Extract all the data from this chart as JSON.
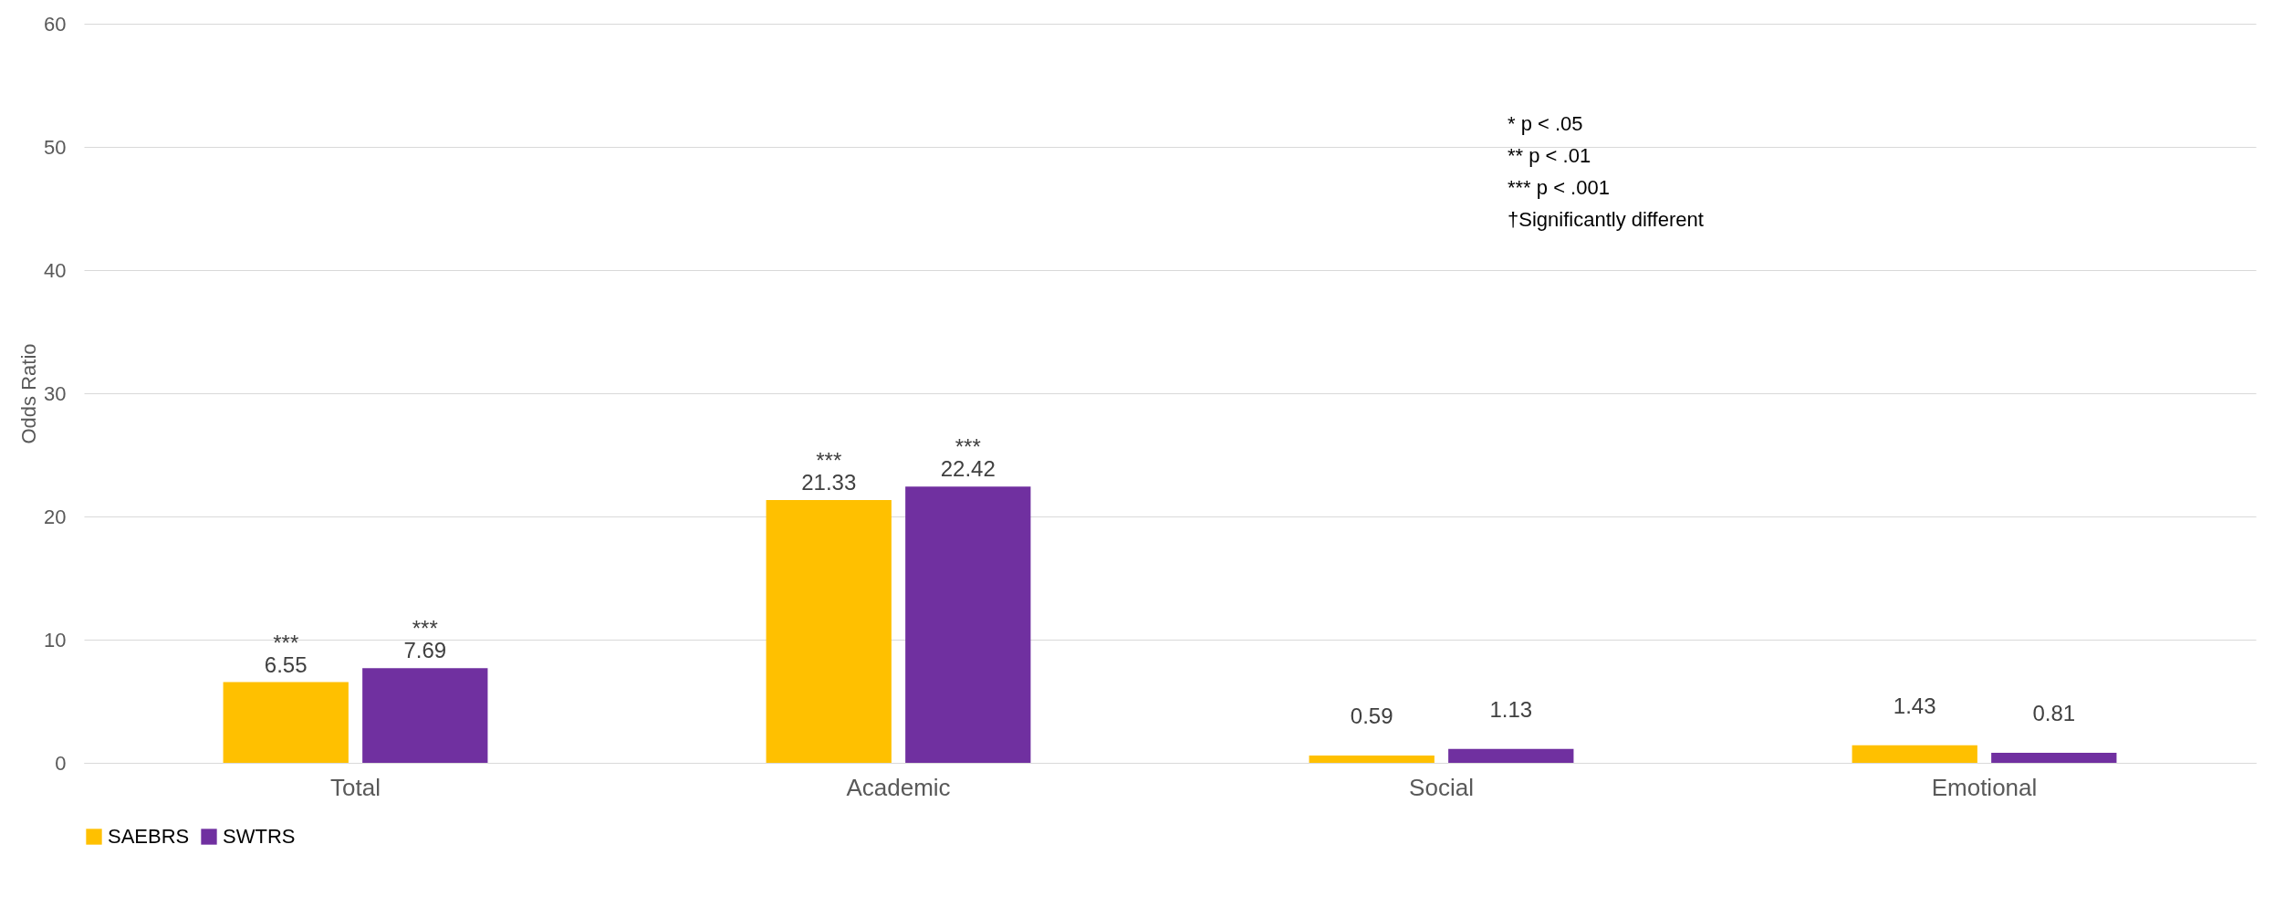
{
  "chart_data": {
    "type": "bar",
    "ylabel": "Odds Ratio",
    "categories": [
      "Total",
      "Academic",
      "Social",
      "Emotional"
    ],
    "series": [
      {
        "name": "SAEBRS",
        "color": "#ffc000",
        "values": [
          6.55,
          21.33,
          0.59,
          1.43
        ],
        "value_labels": [
          "***\n6.55",
          "***\n21.33",
          "0.59",
          "1.43"
        ]
      },
      {
        "name": "SWTRS",
        "color": "#7030a0",
        "values": [
          7.69,
          22.42,
          1.13,
          0.81
        ],
        "value_labels": [
          "***\n7.69",
          "***\n22.42",
          "1.13",
          "0.81"
        ]
      }
    ],
    "ylim": [
      0,
      60
    ],
    "yticks": [
      0,
      10,
      20,
      30,
      40,
      50,
      60
    ],
    "grid": "y",
    "legend": "bottom",
    "annotations": [
      "*    p < .05",
      "**   p < .01",
      "*** p < .001",
      "†Significantly different"
    ]
  }
}
